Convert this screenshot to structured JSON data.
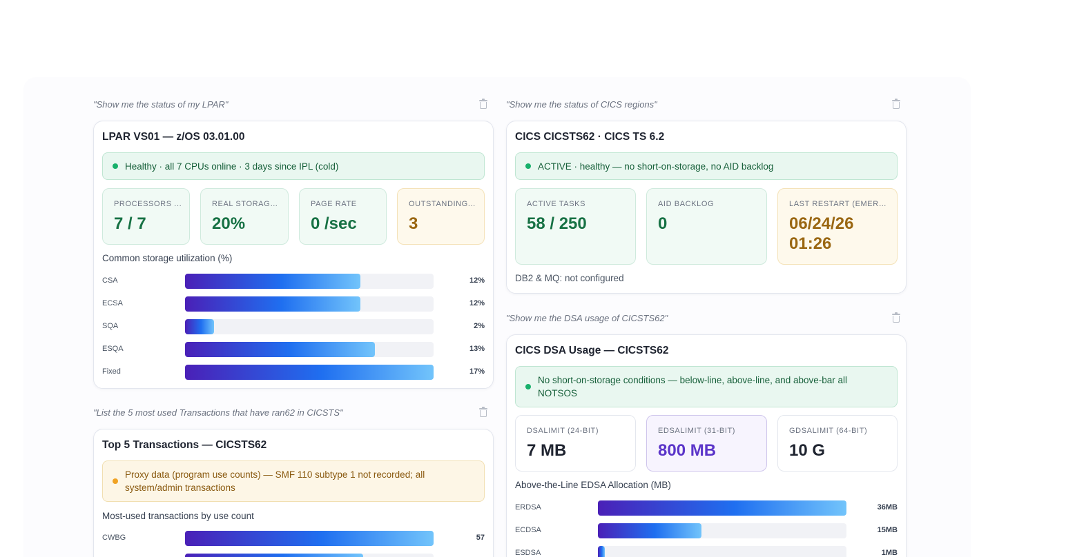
{
  "lpar": {
    "prompt": "\"Show me the status of my LPAR\"",
    "title": "LPAR VS01 — z/OS 03.01.00",
    "banner": "Healthy · all 7 CPUs online · 3 days since IPL (cold)",
    "stats": [
      {
        "label": "PROCESSORS ...",
        "value": "7 / 7",
        "style": "green"
      },
      {
        "label": "REAL STORAGE...",
        "value": "20%",
        "style": "green"
      },
      {
        "label": "PAGE RATE",
        "value": "0 /sec",
        "style": "green"
      },
      {
        "label": "OUTSTANDING...",
        "value": "3",
        "style": "amber"
      }
    ],
    "chart_title": "Common storage utilization (%)"
  },
  "cics": {
    "prompt": "\"Show me the status of CICS regions\"",
    "title": "CICS CICSTS62 · CICS TS 6.2",
    "banner": "ACTIVE · healthy — no short-on-storage, no AID backlog",
    "stats": [
      {
        "label": "ACTIVE TASKS",
        "value": "58 / 250",
        "style": "green"
      },
      {
        "label": "AID BACKLOG",
        "value": "0",
        "style": "green"
      },
      {
        "label": "LAST RESTART (EMERG...",
        "value": "06/24/26 01:26",
        "style": "amber"
      }
    ],
    "note": "DB2 & MQ: not configured"
  },
  "transactions": {
    "prompt": "\"List the 5 most used Transactions that have ran62 in CICSTS\"",
    "title": "Top 5 Transactions — CICSTS62",
    "banner": "Proxy data (program use counts) — SMF 110 subtype 1 not recorded; all system/admin transactions",
    "chart_title": "Most-used transactions by use count"
  },
  "dsa": {
    "prompt": "\"Show me the DSA usage of CICSTS62\"",
    "title": "CICS DSA Usage — CICSTS62",
    "banner": "No short-on-storage conditions — below-line, above-line, and above-bar all NOTSOS",
    "stats": [
      {
        "label": "DSALIMIT (24-BIT)",
        "value": "7 MB",
        "style": "white"
      },
      {
        "label": "EDSALIMIT (31-BIT)",
        "value": "800 MB",
        "style": "purple"
      },
      {
        "label": "GDSALIMIT (64-BIT)",
        "value": "10 G",
        "style": "white"
      }
    ],
    "chart_title": "Above-the-Line EDSA Allocation (MB)"
  },
  "chart_data": [
    {
      "type": "bar",
      "title": "Common storage utilization (%)",
      "orientation": "horizontal",
      "categories": [
        "CSA",
        "ECSA",
        "SQA",
        "ESQA",
        "Fixed"
      ],
      "values": [
        12,
        12,
        2,
        13,
        17
      ],
      "value_labels": [
        "12%",
        "12%",
        "2%",
        "13%",
        "17%"
      ],
      "xlim": [
        0,
        17
      ]
    },
    {
      "type": "bar",
      "title": "Most-used transactions by use count",
      "orientation": "horizontal",
      "categories": [
        "CWBG"
      ],
      "values": [
        57
      ],
      "value_labels": [
        "57"
      ],
      "xlim": [
        0,
        57
      ]
    },
    {
      "type": "bar",
      "title": "Above-the-Line EDSA Allocation (MB)",
      "orientation": "horizontal",
      "categories": [
        "ERDSA",
        "ECDSA",
        "ESDSA"
      ],
      "values": [
        36,
        15,
        1
      ],
      "value_labels": [
        "36MB",
        "15MB",
        "1MB"
      ],
      "xlim": [
        0,
        36
      ]
    }
  ]
}
